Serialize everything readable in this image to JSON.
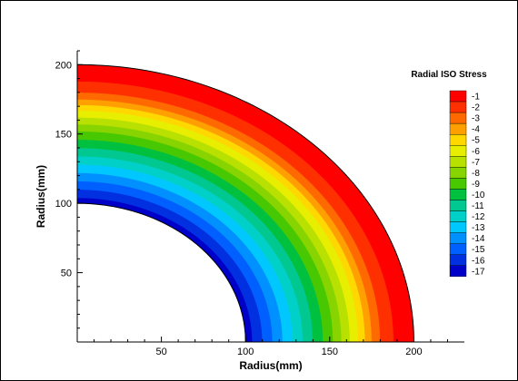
{
  "chart_data": {
    "type": "contour",
    "xlabel": "Radius(mm)",
    "ylabel": "Radius(mm)",
    "xlim": [
      0,
      230
    ],
    "ylim": [
      0,
      210
    ],
    "x_ticks": [
      50,
      100,
      150,
      200
    ],
    "y_ticks": [
      50,
      100,
      150,
      200
    ],
    "inner_radius": 100,
    "outer_radius": 200,
    "legend": {
      "title": "Radial ISO Stress",
      "position": "top-right",
      "levels": [
        -1,
        -2,
        -3,
        -4,
        -5,
        -6,
        -7,
        -8,
        -9,
        -10,
        -11,
        -12,
        -13,
        -14,
        -15,
        -16,
        -17
      ],
      "labels": [
        "-1",
        "-2",
        "-3",
        "-4",
        "-5",
        "-6",
        "-7",
        "-8",
        "-9",
        "-10",
        "-11",
        "-12",
        "-13",
        "-14",
        "-15",
        "-16",
        "-17"
      ],
      "colors": [
        "#ff0000",
        "#ff3000",
        "#ff6a00",
        "#ffa000",
        "#ffd800",
        "#e8ee00",
        "#b8e000",
        "#88d400",
        "#48c800",
        "#00c040",
        "#00c890",
        "#00d0c8",
        "#00c8ff",
        "#0090ff",
        "#0060ff",
        "#0030e0",
        "#0000c8"
      ]
    },
    "contour_bands": [
      {
        "r_inner": 100,
        "r_outer": 104,
        "level": -17
      },
      {
        "r_inner": 104,
        "r_outer": 110,
        "level": -16
      },
      {
        "r_inner": 110,
        "r_outer": 116,
        "level": -15
      },
      {
        "r_inner": 116,
        "r_outer": 122,
        "level": -14
      },
      {
        "r_inner": 122,
        "r_outer": 128,
        "level": -13
      },
      {
        "r_inner": 128,
        "r_outer": 134,
        "level": -12
      },
      {
        "r_inner": 134,
        "r_outer": 140,
        "level": -11
      },
      {
        "r_inner": 140,
        "r_outer": 146,
        "level": -10
      },
      {
        "r_inner": 146,
        "r_outer": 152,
        "level": -9
      },
      {
        "r_inner": 152,
        "r_outer": 157,
        "level": -8
      },
      {
        "r_inner": 157,
        "r_outer": 162,
        "level": -7
      },
      {
        "r_inner": 162,
        "r_outer": 167,
        "level": -6
      },
      {
        "r_inner": 167,
        "r_outer": 171,
        "level": -5
      },
      {
        "r_inner": 171,
        "r_outer": 175,
        "level": -4
      },
      {
        "r_inner": 175,
        "r_outer": 180,
        "level": -3
      },
      {
        "r_inner": 180,
        "r_outer": 188,
        "level": -2
      },
      {
        "r_inner": 188,
        "r_outer": 200,
        "level": -1
      }
    ]
  }
}
